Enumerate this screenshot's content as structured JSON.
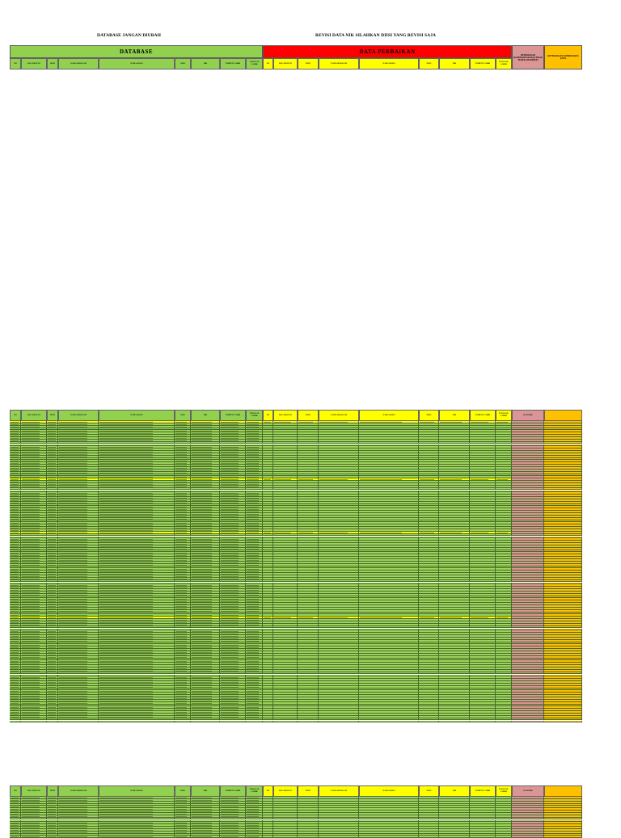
{
  "titles": {
    "left": "DATABASE JANGAN DIUBAH",
    "right": "REVISI DATA NIK SILAHKAN DIISI YANG REVISI SAJA"
  },
  "bands": {
    "database": "DATABASE",
    "perbaikan": "DATA PERBAIKAN",
    "ket_pink": "KETERANGAN (KABUPATEN/KOTA) (TIDAK MASUK DATABASE)",
    "ket_orange": "KETERANGAN KONDISI/DATA KOTA",
    "dapodik": "DAPODIK"
  },
  "columns": {
    "left": [
      "NO",
      "KECAMATAN",
      "NPSN",
      "NAMA SEKOLAH",
      "NAMA SISWA",
      "NISN",
      "NIK",
      "TEMPAT LAHIR",
      "TANGGAL LAHIR"
    ],
    "right": [
      "NO",
      "KECAMATAN",
      "NPSN",
      "NAMA SEKOLAH",
      "NAMA SISWA",
      "NISN",
      "NIK",
      "TEMPAT LAHIR",
      "TANGGAL LAHIR"
    ]
  },
  "colors": {
    "database_green": "#92d050",
    "row_green": "#9bd45a",
    "red": "#ff0000",
    "yellow": "#ffff00",
    "pink": "#d99694",
    "orange": "#ffc000"
  }
}
